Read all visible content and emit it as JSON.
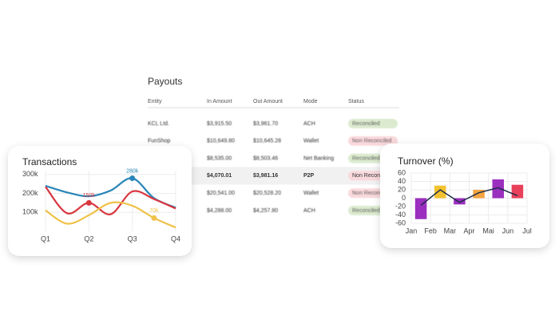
{
  "table": {
    "title": "Payouts",
    "columns": [
      "Entity",
      "In Amount",
      "Out Amount",
      "Mode",
      "Status"
    ],
    "rows": [
      [
        "KCL Ltd.",
        "$3,915.50",
        "$3,961.70",
        "ACH",
        "Reconciled"
      ],
      [
        "FunShop",
        "$10,649.80",
        "$10,645.28",
        "Wallet",
        "Non Reconciled"
      ],
      [
        null,
        "$8,535.00",
        "$8,503.46",
        "Net Banking",
        "Reconciled"
      ],
      [
        null,
        "$4,070.01",
        "$3,981.16",
        "P2P",
        "Non Reconciled"
      ],
      [
        null,
        "$20,541.00",
        "$20,528.20",
        "Wallet",
        "Non Reconciled"
      ],
      [
        null,
        "$4,288.00",
        "$4,257.80",
        "ACH",
        "Reconciled"
      ]
    ],
    "status_colors": [
      "#dcebd0",
      "#f9d9dc",
      "#dcebd0",
      "#f9d9dc",
      "#f9d9dc",
      "#dcebd0"
    ],
    "highlight_row": 3
  },
  "chart_data": [
    {
      "type": "line",
      "title": "Transactions",
      "x": [
        1,
        1.5,
        2,
        2.5,
        3,
        3.5,
        4
      ],
      "xlim": [
        1,
        4
      ],
      "xticks": [
        {
          "value": 1,
          "label": "Q1"
        },
        {
          "value": 2,
          "label": "Q2"
        },
        {
          "value": 3,
          "label": "Q3"
        },
        {
          "value": 4,
          "label": "Q4"
        }
      ],
      "ylim": [
        0,
        320000
      ],
      "yticks": [
        {
          "value": 100000,
          "label": "100k"
        },
        {
          "value": 200000,
          "label": "200k"
        },
        {
          "value": 300000,
          "label": "300k"
        }
      ],
      "grid": true,
      "series": [
        {
          "color": "#2a86b8",
          "values": [
            240000,
            205000,
            185000,
            215000,
            280000,
            175000,
            125000
          ],
          "value_labels": [
            null,
            null,
            null,
            null,
            "280k",
            null,
            null
          ]
        },
        {
          "color": "#d9363e",
          "values": [
            235000,
            95000,
            150000,
            90000,
            210000,
            170000,
            120000
          ],
          "value_labels": [
            null,
            null,
            "150k",
            null,
            null,
            null,
            null
          ]
        },
        {
          "color": "#f0c24a",
          "values": [
            110000,
            40000,
            85000,
            150000,
            135000,
            70000,
            20000
          ],
          "value_labels": [
            null,
            null,
            null,
            null,
            null,
            "70k",
            null
          ]
        }
      ]
    },
    {
      "type": "bar",
      "title": "Turnover (%)",
      "x": [
        0.5,
        1.5,
        2.5,
        3.5,
        4.5,
        5.5
      ],
      "xlim": [
        0,
        6
      ],
      "xticks": [
        {
          "value": 0,
          "label": "Jan"
        },
        {
          "value": 1,
          "label": "Feb"
        },
        {
          "value": 2,
          "label": "Mar"
        },
        {
          "value": 3,
          "label": "Apr"
        },
        {
          "value": 4,
          "label": "Mai"
        },
        {
          "value": 5,
          "label": "Jun"
        },
        {
          "value": 6,
          "label": "Jul"
        }
      ],
      "ylim": [
        -60,
        60
      ],
      "yticks": [
        -60,
        -40,
        -20,
        0,
        20,
        40,
        60
      ],
      "grid": true,
      "series": [
        {
          "type": "bar",
          "colors": [
            "#9b2fbf",
            "#f2c12e",
            "#9b2fbf",
            "#f5a442",
            "#9b2fbf",
            "#e8405a"
          ],
          "values": [
            -50,
            30,
            -15,
            20,
            45,
            32
          ]
        },
        {
          "type": "line",
          "color": "#1c2b4a",
          "values": [
            -17,
            20,
            -10,
            13,
            25,
            6
          ]
        }
      ]
    }
  ]
}
